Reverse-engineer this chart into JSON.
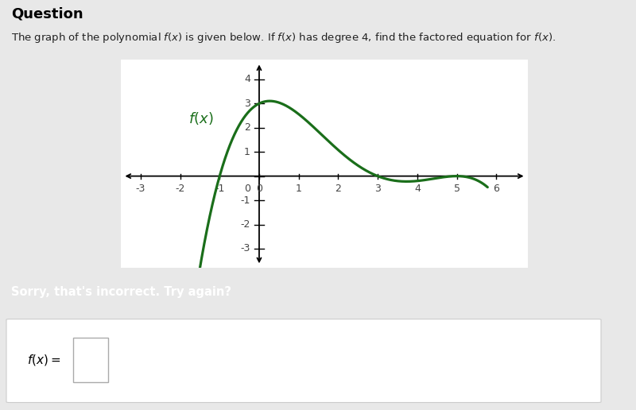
{
  "title_main": "Question",
  "title_sub": "The graph of the polynomial $f(x)$ is given below. If $f(x)$ has degree 4, find the factored equation for $f(x)$.",
  "fx_label": "$f(x)$",
  "xlim": [
    -3.5,
    6.8
  ],
  "ylim": [
    -3.8,
    4.8
  ],
  "xticks": [
    -3,
    -2,
    -1,
    0,
    1,
    2,
    3,
    4,
    5,
    6
  ],
  "yticks": [
    -3,
    -2,
    -1,
    0,
    1,
    2,
    3,
    4
  ],
  "curve_color": "#1a6e1a",
  "curve_linewidth": 2.3,
  "page_bg": "#ffffff",
  "outer_bg": "#e8e8e8",
  "error_bg": "#c0524a",
  "error_text": "Sorry, that's incorrect. Try again?",
  "input_label": "$f(x) =$",
  "poly_a": -0.04,
  "x_start": -1.9,
  "x_end": 5.78
}
